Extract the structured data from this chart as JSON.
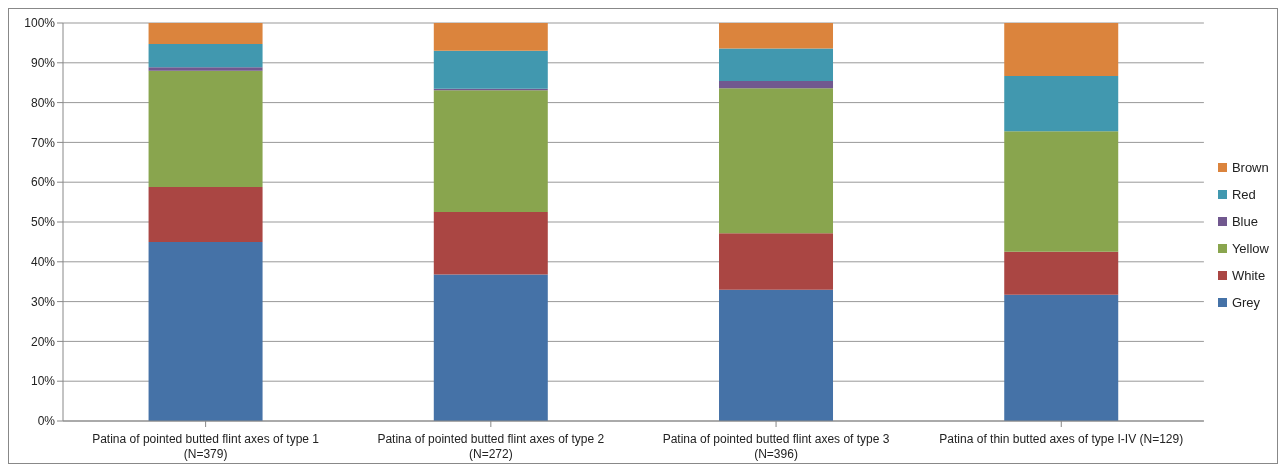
{
  "chart_data": {
    "type": "bar",
    "stacked": true,
    "categories": [
      "Patina of pointed butted flint axes of type 1 (N=379)",
      "Patina of pointed butted flint axes of type 2 (N=272)",
      "Patina of pointed butted flint axes of type 3 (N=396)",
      "Patina of thin butted axes of type I-IV (N=129)"
    ],
    "series": [
      {
        "name": "Grey",
        "color": "#4572a7",
        "values": [
          45,
          36.8,
          33,
          31.7
        ]
      },
      {
        "name": "White",
        "color": "#aa4643",
        "values": [
          13.8,
          15.7,
          14.2,
          10.8
        ]
      },
      {
        "name": "Yellow",
        "color": "#89a54e",
        "values": [
          29.2,
          30.6,
          36.4,
          30.3
        ]
      },
      {
        "name": "Blue",
        "color": "#71588f",
        "values": [
          0.9,
          0.4,
          1.8,
          0
        ]
      },
      {
        "name": "Red",
        "color": "#4198af",
        "values": [
          5.8,
          9.5,
          8.2,
          13.9
        ]
      },
      {
        "name": "Brown",
        "color": "#db843d",
        "values": [
          5.3,
          7,
          6.4,
          13.3
        ]
      }
    ],
    "ylim": [
      0,
      100
    ],
    "yticks": [
      {
        "value": 0,
        "label": "0%"
      },
      {
        "value": 10,
        "label": "10%"
      },
      {
        "value": 20,
        "label": "20%"
      },
      {
        "value": 30,
        "label": "30%"
      },
      {
        "value": 40,
        "label": "40%"
      },
      {
        "value": 50,
        "label": "50%"
      },
      {
        "value": 60,
        "label": "60%"
      },
      {
        "value": 70,
        "label": "70%"
      },
      {
        "value": 80,
        "label": "80%"
      },
      {
        "value": 90,
        "label": "90%"
      },
      {
        "value": 100,
        "label": "100%"
      }
    ],
    "grid": "y",
    "legend": "right"
  }
}
